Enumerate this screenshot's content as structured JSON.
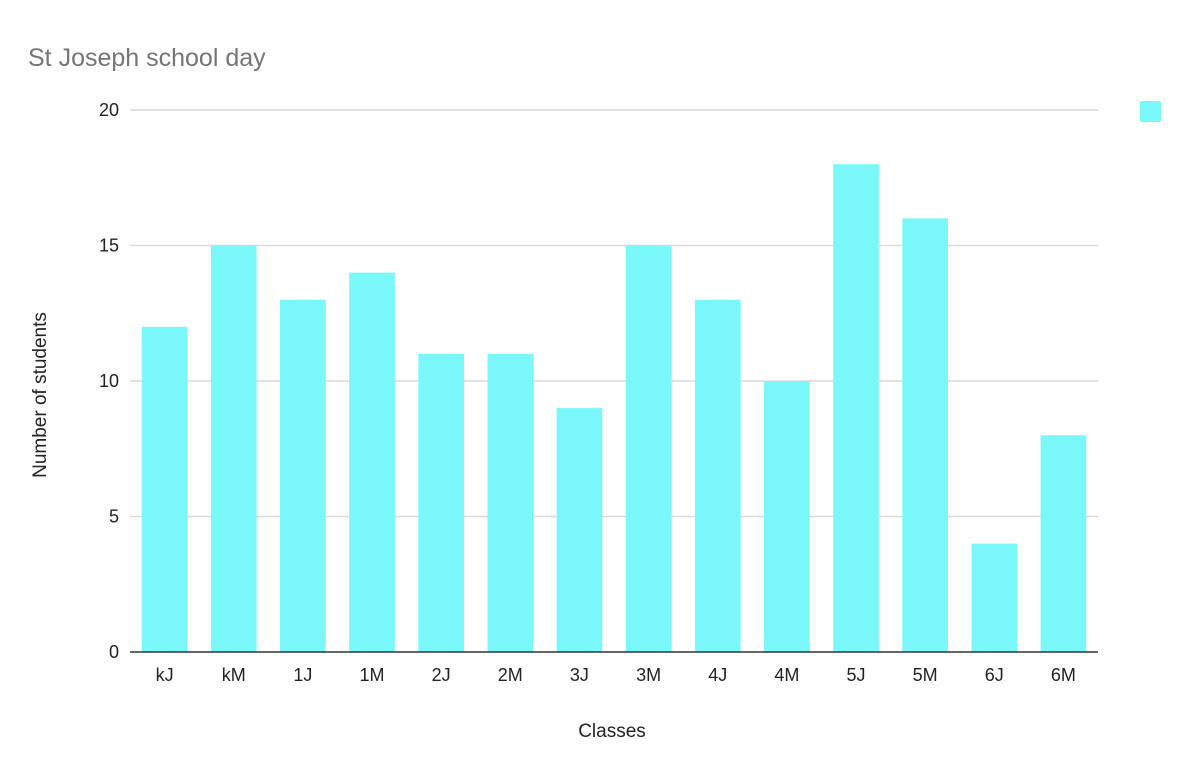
{
  "chart_data": {
    "type": "bar",
    "title": "St Joseph school day",
    "xlabel": "Classes",
    "ylabel": "Number of students",
    "categories": [
      "kJ",
      "kM",
      "1J",
      "1M",
      "2J",
      "2M",
      "3J",
      "3M",
      "4J",
      "4M",
      "5J",
      "5M",
      "6J",
      "6M"
    ],
    "values": [
      12,
      15,
      13,
      14,
      11,
      11,
      9,
      15,
      13,
      10,
      18,
      16,
      4,
      8
    ],
    "ylim": [
      0,
      20
    ],
    "yticks": [
      0,
      5,
      10,
      15,
      20
    ],
    "grid": true,
    "legend": {
      "position": "top-right",
      "label": ""
    },
    "colors": {
      "bar": "#7af8f9",
      "gridline": "#d9d9d9",
      "axis": "#333333",
      "title": "#757575",
      "text": "#222222"
    }
  }
}
